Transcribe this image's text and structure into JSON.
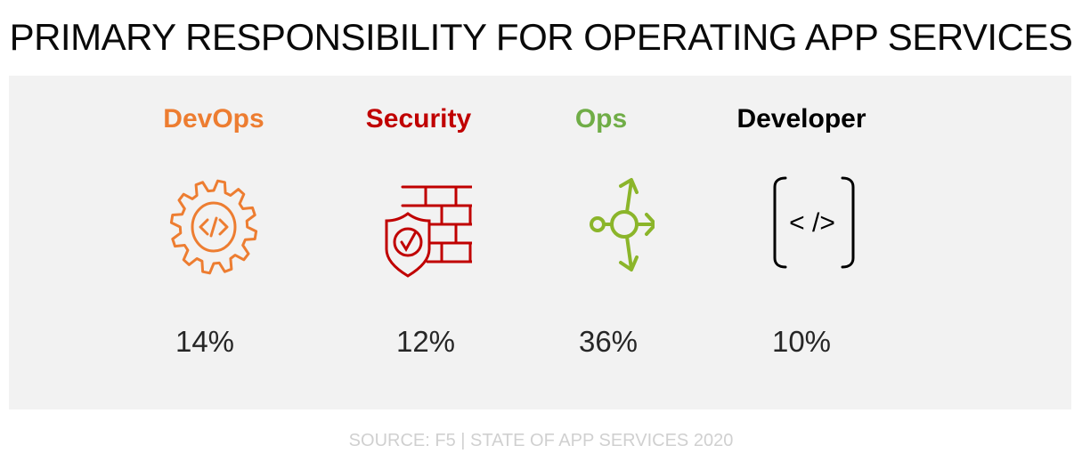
{
  "title": "PRIMARY RESPONSIBILITY FOR OPERATING APP SERVICES",
  "items": [
    {
      "label": "DevOps",
      "percent": "14%",
      "icon": "gear-code-icon",
      "color": "#ed7d31"
    },
    {
      "label": "Security",
      "percent": "12%",
      "icon": "shield-firewall-icon",
      "color": "#c00000"
    },
    {
      "label": "Ops",
      "percent": "36%",
      "icon": "branch-arrows-icon",
      "color": "#70ad47"
    },
    {
      "label": "Developer",
      "percent": "10%",
      "icon": "code-brackets-icon",
      "color": "#000000"
    }
  ],
  "source": "SOURCE: F5 | STATE OF APP SERVICES 2020"
}
